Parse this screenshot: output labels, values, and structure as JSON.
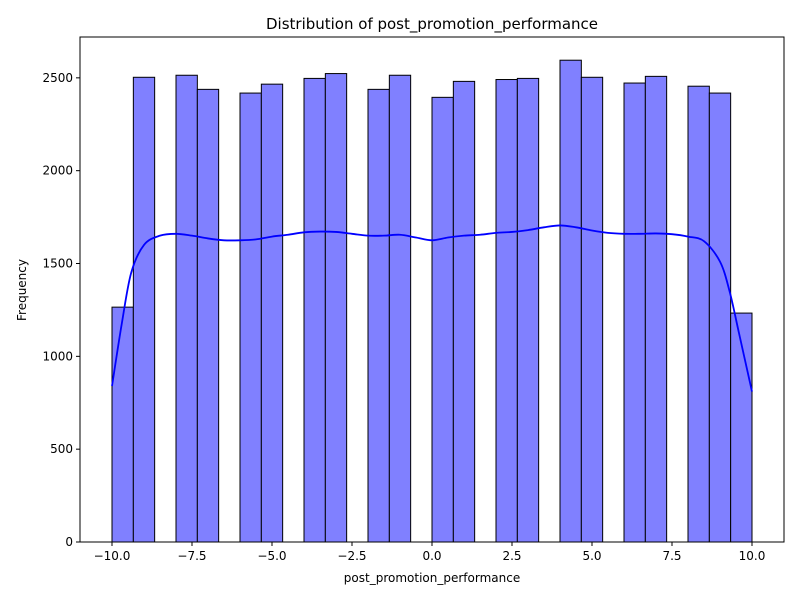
{
  "chart_data": {
    "type": "bar",
    "title": "Distribution of post_promotion_performance",
    "xlabel": "post_promotion_performance",
    "ylabel": "Frequency",
    "xlim": [
      -10.0,
      10.0
    ],
    "ylim": [
      0,
      2720
    ],
    "xticks": [
      -10.0,
      -7.5,
      -5.0,
      -2.5,
      0.0,
      2.5,
      5.0,
      7.5,
      10.0
    ],
    "xtick_labels": [
      "−10.0",
      "−7.5",
      "−5.0",
      "−2.5",
      "0.0",
      "2.5",
      "5.0",
      "7.5",
      "10.0"
    ],
    "yticks": [
      0,
      500,
      1000,
      1500,
      2000,
      2500
    ],
    "ytick_labels": [
      "0",
      "500",
      "1000",
      "1500",
      "2000",
      "2500"
    ],
    "bar_color": "#8080ff",
    "bar_edge_color": "#000000",
    "kde_color": "#0000ff",
    "grid": false,
    "bins": [
      {
        "x0": -10.0,
        "x1": -9.333,
        "count": 1265
      },
      {
        "x0": -9.333,
        "x1": -8.667,
        "count": 2503
      },
      {
        "x0": -8.667,
        "x1": -8.0,
        "count": 0
      },
      {
        "x0": -8.0,
        "x1": -7.333,
        "count": 2514
      },
      {
        "x0": -7.333,
        "x1": -6.667,
        "count": 2438
      },
      {
        "x0": -6.667,
        "x1": -6.0,
        "count": 0
      },
      {
        "x0": -6.0,
        "x1": -5.333,
        "count": 2418
      },
      {
        "x0": -5.333,
        "x1": -4.667,
        "count": 2466
      },
      {
        "x0": -4.667,
        "x1": -4.0,
        "count": 0
      },
      {
        "x0": -4.0,
        "x1": -3.333,
        "count": 2497
      },
      {
        "x0": -3.333,
        "x1": -2.667,
        "count": 2523
      },
      {
        "x0": -2.667,
        "x1": -2.0,
        "count": 0
      },
      {
        "x0": -2.0,
        "x1": -1.333,
        "count": 2438
      },
      {
        "x0": -1.333,
        "x1": -0.667,
        "count": 2514
      },
      {
        "x0": -0.667,
        "x1": 0.0,
        "count": 0
      },
      {
        "x0": 0.0,
        "x1": 0.667,
        "count": 2395
      },
      {
        "x0": 0.667,
        "x1": 1.333,
        "count": 2481
      },
      {
        "x0": 1.333,
        "x1": 2.0,
        "count": 0
      },
      {
        "x0": 2.0,
        "x1": 2.667,
        "count": 2491
      },
      {
        "x0": 2.667,
        "x1": 3.333,
        "count": 2497
      },
      {
        "x0": 3.333,
        "x1": 4.0,
        "count": 0
      },
      {
        "x0": 4.0,
        "x1": 4.667,
        "count": 2595
      },
      {
        "x0": 4.667,
        "x1": 5.333,
        "count": 2503
      },
      {
        "x0": 5.333,
        "x1": 6.0,
        "count": 0
      },
      {
        "x0": 6.0,
        "x1": 6.667,
        "count": 2472
      },
      {
        "x0": 6.667,
        "x1": 7.333,
        "count": 2508
      },
      {
        "x0": 7.333,
        "x1": 8.0,
        "count": 0
      },
      {
        "x0": 8.0,
        "x1": 8.667,
        "count": 2455
      },
      {
        "x0": 8.667,
        "x1": 9.333,
        "count": 2418
      },
      {
        "x0": 9.333,
        "x1": 10.0,
        "count": 1233
      }
    ],
    "kde": {
      "x": [
        -10.0,
        -9.7,
        -9.4,
        -9.0,
        -8.5,
        -8.0,
        -7.5,
        -7.0,
        -6.5,
        -6.0,
        -5.5,
        -5.0,
        -4.5,
        -4.0,
        -3.5,
        -3.0,
        -2.5,
        -2.0,
        -1.5,
        -1.0,
        -0.5,
        0.0,
        0.5,
        1.0,
        1.5,
        2.0,
        2.5,
        3.0,
        3.5,
        4.0,
        4.5,
        5.0,
        5.5,
        6.0,
        6.5,
        7.0,
        7.5,
        8.0,
        8.5,
        9.0,
        9.3,
        9.6,
        10.0
      ],
      "y": [
        840,
        1170,
        1450,
        1600,
        1650,
        1660,
        1650,
        1635,
        1625,
        1625,
        1630,
        1645,
        1655,
        1668,
        1672,
        1670,
        1660,
        1650,
        1650,
        1655,
        1640,
        1625,
        1640,
        1650,
        1655,
        1665,
        1670,
        1680,
        1695,
        1705,
        1695,
        1678,
        1665,
        1660,
        1660,
        1662,
        1658,
        1645,
        1620,
        1510,
        1350,
        1120,
        810
      ]
    }
  }
}
